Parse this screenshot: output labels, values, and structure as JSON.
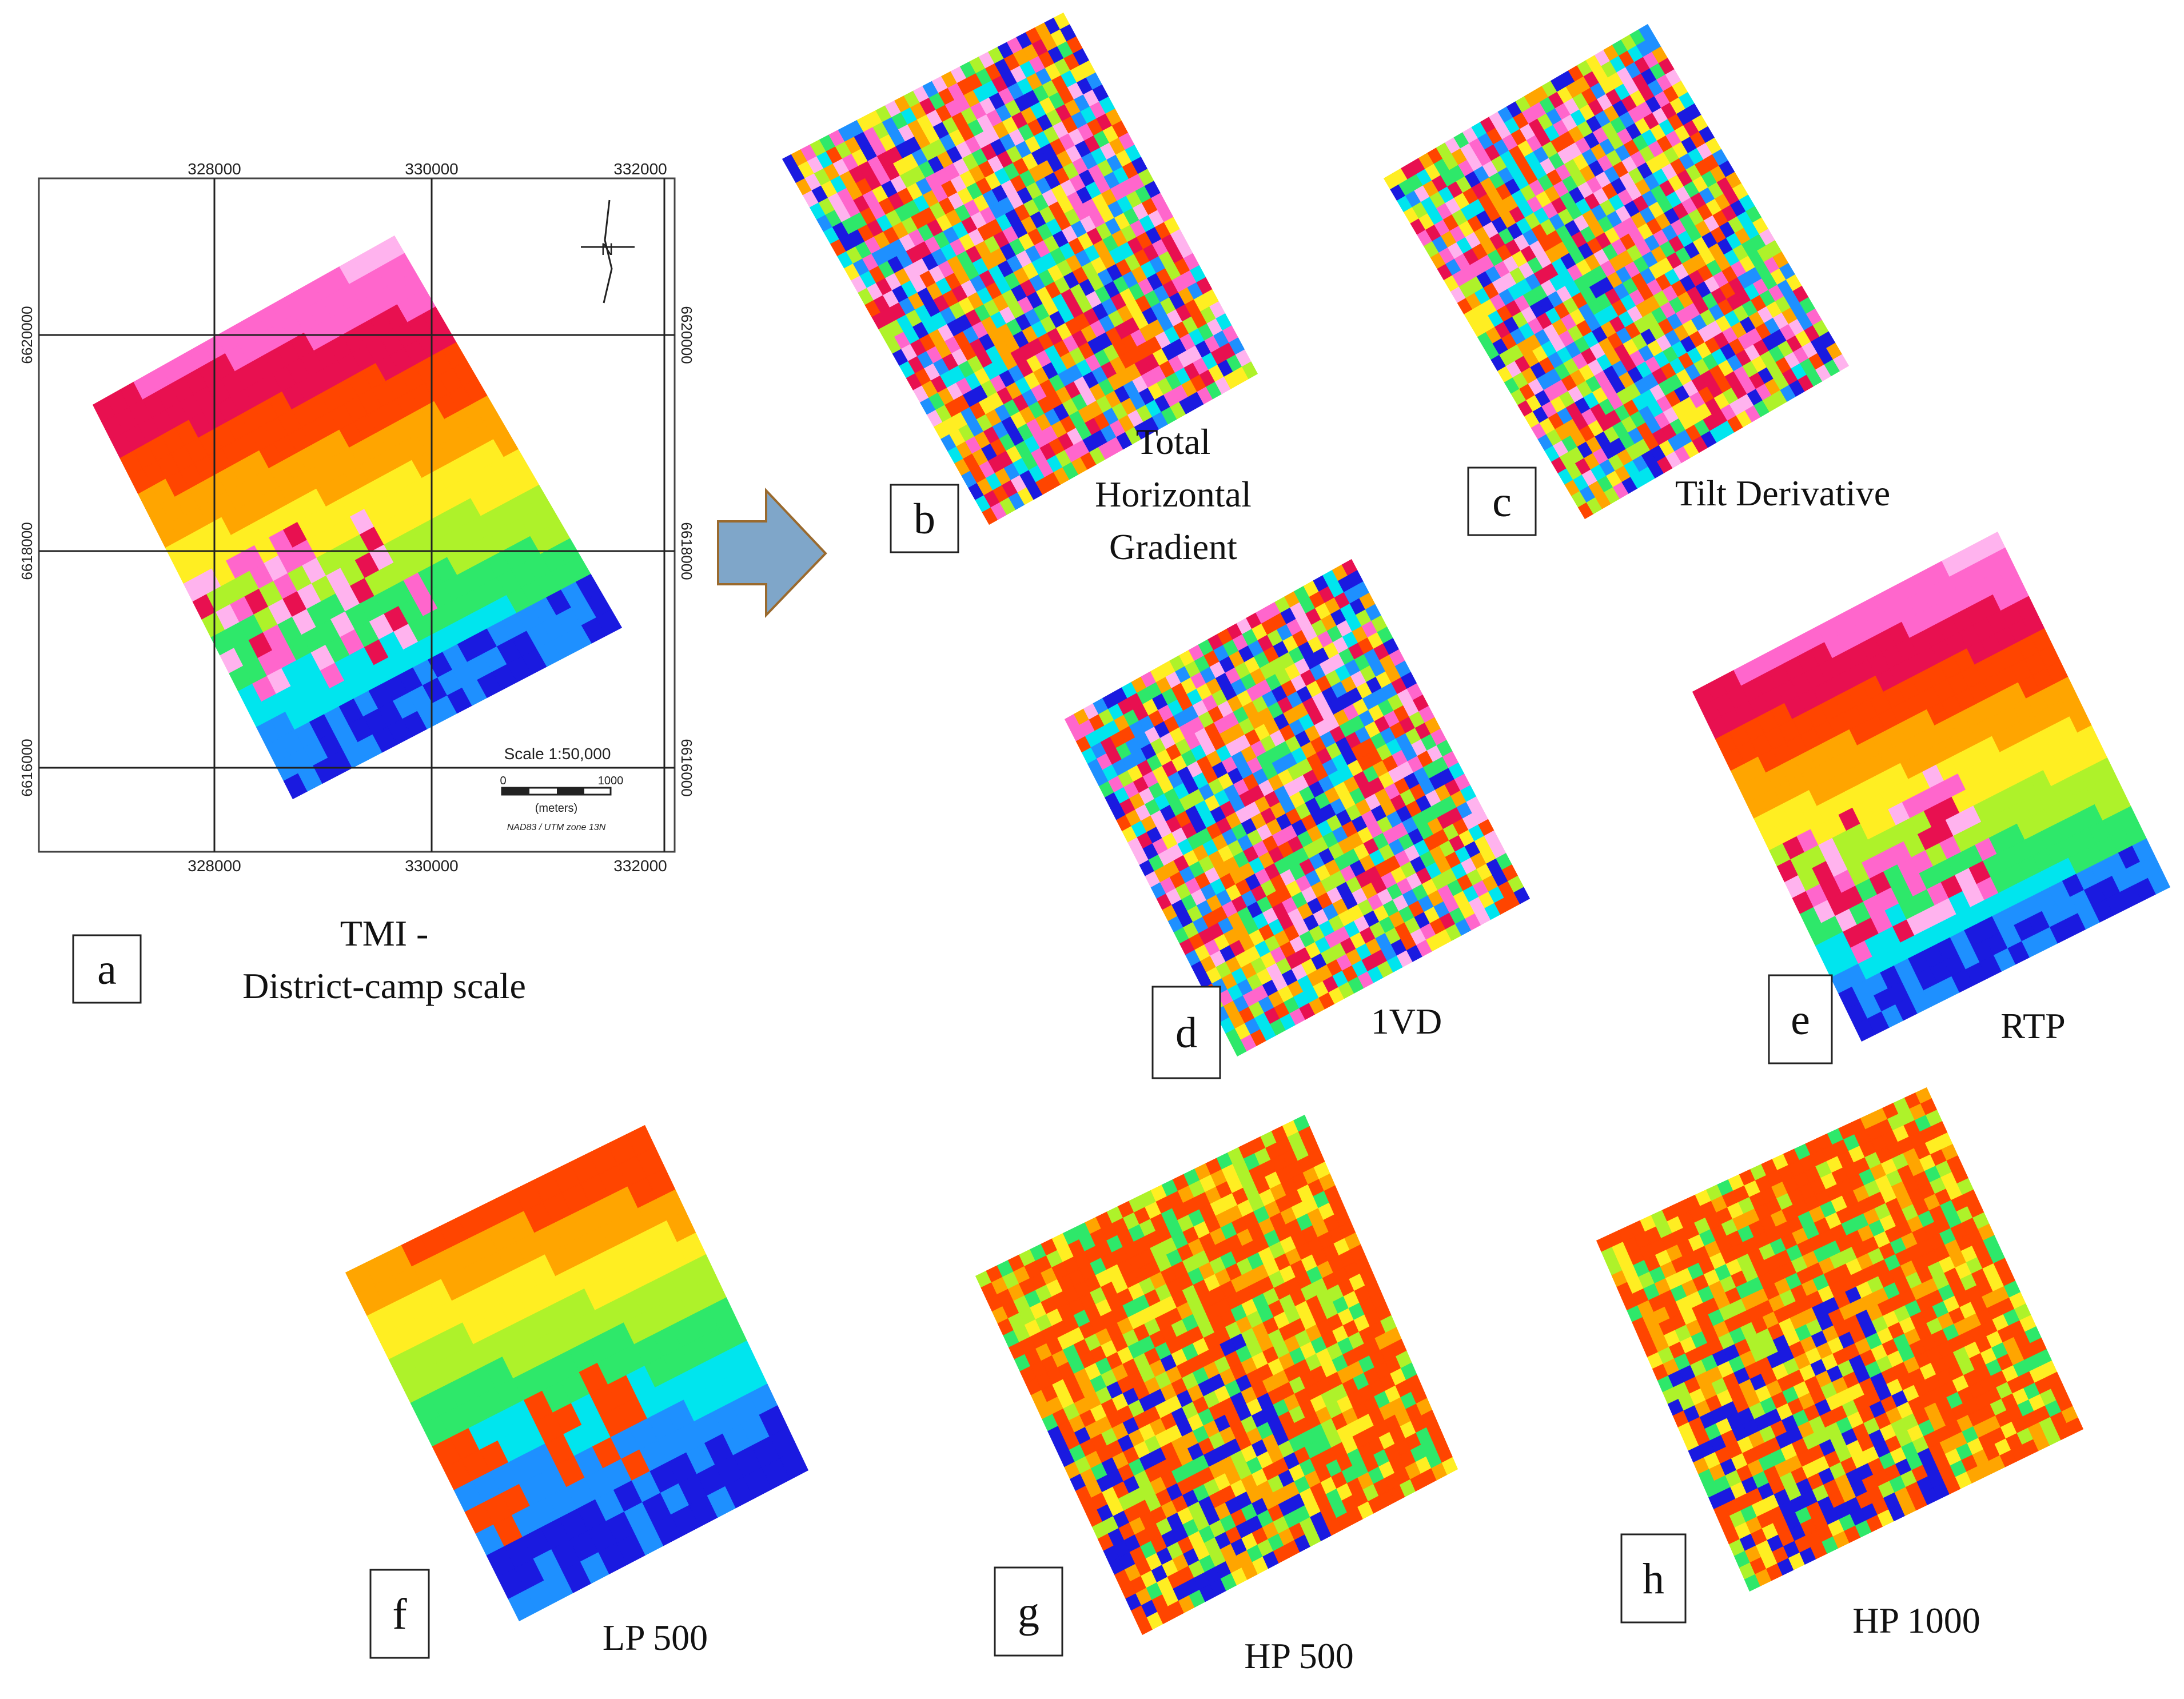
{
  "map": {
    "x_ticks": [
      "328000",
      "330000",
      "332000"
    ],
    "y_ticks": [
      "6620000",
      "6618000",
      "6616000"
    ],
    "scale_title": "Scale 1:50,000",
    "scale_ticks": [
      "0",
      "1000"
    ],
    "scale_unit": "(meters)",
    "projection": "NAD83 / UTM zone 13N",
    "north_label": "N"
  },
  "panels": [
    {
      "letter": "a",
      "caption_lines": [
        "TMI -",
        "District-camp scale"
      ],
      "style": "tmi"
    },
    {
      "letter": "b",
      "caption_lines": [
        "Total",
        "Horizontal",
        "Gradient"
      ],
      "style": "thg"
    },
    {
      "letter": "c",
      "caption_lines": [
        "Tilt Derivative"
      ],
      "style": "tilt"
    },
    {
      "letter": "d",
      "caption_lines": [
        "1VD"
      ],
      "style": "vd1"
    },
    {
      "letter": "e",
      "caption_lines": [
        "RTP"
      ],
      "style": "rtp"
    },
    {
      "letter": "f",
      "caption_lines": [
        "LP 500"
      ],
      "style": "lp"
    },
    {
      "letter": "g",
      "caption_lines": [
        "HP 500"
      ],
      "style": "hp"
    },
    {
      "letter": "h",
      "caption_lines": [
        "HP 1000"
      ],
      "style": "hp"
    }
  ],
  "colors": {
    "arrow_fill": "#7fa6c9",
    "arrow_stroke": "#9a6a2e",
    "palette": [
      "#1a1ae0",
      "#1e90ff",
      "#00e5ee",
      "#2ee86a",
      "#aef22a",
      "#ffee22",
      "#ffa500",
      "#ff4500",
      "#e81050",
      "#ff66cc",
      "#ffb3ee"
    ]
  }
}
